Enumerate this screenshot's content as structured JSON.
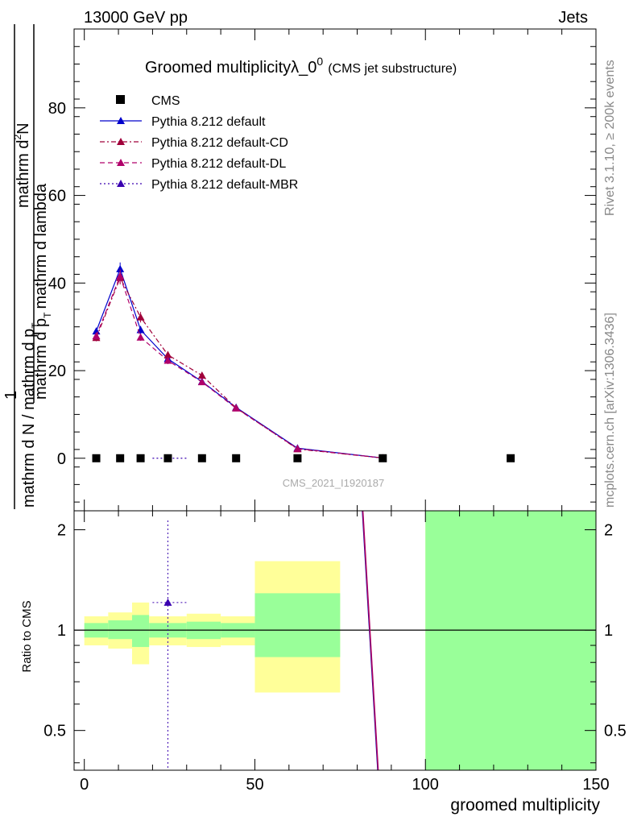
{
  "header": {
    "left": "13000 GeV pp",
    "right": "Jets"
  },
  "colors": {
    "cms": "#000000",
    "default": "#0000cc",
    "cd": "#a0003a",
    "dl": "#b0006a",
    "mbr": "#3a00b0",
    "band_inner": "#99ff99",
    "band_outer": "#ffff99"
  },
  "chart_data": [
    {
      "panel": "main",
      "type": "line",
      "title": "Groomed multiplicity",
      "title_math": "λ_0",
      "title_superscript": "0",
      "subtitle": "(CMS jet substructure)",
      "ylabel": {
        "numerator": "mathrm d",
        "numerator_sup": "2",
        "numerator_tail": "N",
        "denominator_a": "mathrm d N / mathrm d p",
        "denominator_a_sub": "T",
        "denominator_b": "mathrm d p",
        "denominator_b_sub": "T",
        "denominator_c": "mathrm d lambda",
        "prefix": "1"
      },
      "xlim": [
        -3,
        150
      ],
      "ylim": [
        -12,
        98
      ],
      "yticks": [
        "0",
        "20",
        "40",
        "60",
        "80"
      ],
      "ytick_values": [
        0,
        20,
        40,
        60,
        80
      ],
      "watermark": "CMS_2021_I1920187",
      "side_text_top": "Rivet 3.1.10, ≥ 200k events",
      "side_text_bottom": "mcplots.cern.ch [arXiv:1306.3436]",
      "legend": [
        {
          "label": "CMS",
          "key": "cms"
        },
        {
          "label": "Pythia 8.212 default",
          "key": "default"
        },
        {
          "label": "Pythia 8.212 default-CD",
          "key": "cd"
        },
        {
          "label": "Pythia 8.212 default-DL",
          "key": "dl"
        },
        {
          "label": "Pythia 8.212 default-MBR",
          "key": "mbr"
        }
      ],
      "cms": {
        "x": [
          3.5,
          10.5,
          16.5,
          24.5,
          34.5,
          44.5,
          62.5,
          87.5,
          125
        ],
        "y": [
          0,
          0,
          0,
          0,
          0,
          0,
          0,
          0,
          0
        ]
      },
      "series": [
        {
          "name": "Pythia 8.212 default",
          "key": "default",
          "x": [
            3.5,
            10.5,
            16.5,
            24.5,
            34.5,
            44.5,
            62.5,
            87.5
          ],
          "y": [
            29,
            43.2,
            29.3,
            22.7,
            17.5,
            11.6,
            2.3,
            0.05
          ],
          "err": [
            0.8,
            1.5,
            0.9,
            0.8,
            0.6,
            0.4,
            0.2,
            0.05
          ]
        },
        {
          "name": "Pythia 8.212 default-CD",
          "key": "cd",
          "x": [
            3.5,
            10.5,
            16.5,
            24.5,
            34.5,
            44.5,
            62.5,
            87.5
          ],
          "y": [
            27.5,
            41.2,
            32.2,
            23.6,
            18.9,
            11.5,
            2.1,
            0.05
          ],
          "err": [
            0.8,
            1.5,
            1.2,
            0.8,
            0.6,
            0.4,
            0.2,
            0.05
          ]
        },
        {
          "name": "Pythia 8.212 default-DL",
          "key": "dl",
          "x": [
            3.5,
            10.5,
            16.5,
            24.5,
            34.5,
            44.5,
            62.5,
            87.5
          ],
          "y": [
            27.9,
            41.6,
            27.6,
            22.3,
            17.4,
            11.4,
            2.2,
            0.05
          ],
          "err": [
            0.8,
            1.5,
            0.8,
            0.8,
            0.6,
            0.4,
            0.2,
            0.05
          ]
        },
        {
          "name": "Pythia 8.212 default-MBR",
          "key": "mbr",
          "x": [
            20,
            24.5,
            30
          ],
          "y": [
            0,
            0,
            0
          ],
          "err": [
            0,
            0,
            0
          ]
        }
      ]
    },
    {
      "panel": "ratio",
      "type": "area",
      "ylabel": "Ratio to CMS",
      "xlabel": "groomed multiplicity",
      "xlim": [
        -3,
        150
      ],
      "ylim": [
        0.38,
        2.28
      ],
      "yticks": [
        "0.5",
        "1",
        "2"
      ],
      "ytick_values": [
        0.5,
        1,
        2
      ],
      "xticks": [
        "0",
        "50",
        "100",
        "150"
      ],
      "xtick_values": [
        0,
        50,
        100,
        150
      ],
      "bands": [
        {
          "x0": 0,
          "x1": 7,
          "inner": [
            0.95,
            1.05
          ],
          "outer": [
            0.9,
            1.1
          ]
        },
        {
          "x0": 7,
          "x1": 14,
          "inner": [
            0.94,
            1.07
          ],
          "outer": [
            0.88,
            1.13
          ]
        },
        {
          "x0": 14,
          "x1": 19,
          "inner": [
            0.89,
            1.11
          ],
          "outer": [
            0.79,
            1.21
          ]
        },
        {
          "x0": 19,
          "x1": 30,
          "inner": [
            0.95,
            1.05
          ],
          "outer": [
            0.9,
            1.1
          ]
        },
        {
          "x0": 30,
          "x1": 40,
          "inner": [
            0.94,
            1.06
          ],
          "outer": [
            0.89,
            1.12
          ]
        },
        {
          "x0": 40,
          "x1": 50,
          "inner": [
            0.95,
            1.05
          ],
          "outer": [
            0.9,
            1.1
          ]
        },
        {
          "x0": 50,
          "x1": 75,
          "inner": [
            0.83,
            1.29
          ],
          "outer": [
            0.65,
            1.61
          ]
        },
        {
          "x0": 100,
          "x1": 150,
          "inner": [
            0.38,
            2.28
          ],
          "outer": [
            0.38,
            2.28
          ]
        }
      ],
      "mbr_point": {
        "x": 24.5,
        "y": 1.21,
        "xerr": [
          20,
          30
        ],
        "yerr": [
          0.38,
          2.28
        ]
      },
      "steep_lines": [
        {
          "key": "default",
          "x": [
            81.5,
            86
          ],
          "y": [
            2.28,
            0.38
          ]
        },
        {
          "key": "cd",
          "x": [
            81.6,
            86.1
          ],
          "y": [
            2.28,
            0.38
          ]
        },
        {
          "key": "dl",
          "x": [
            81.7,
            86.2
          ],
          "y": [
            2.28,
            0.38
          ]
        }
      ]
    }
  ]
}
